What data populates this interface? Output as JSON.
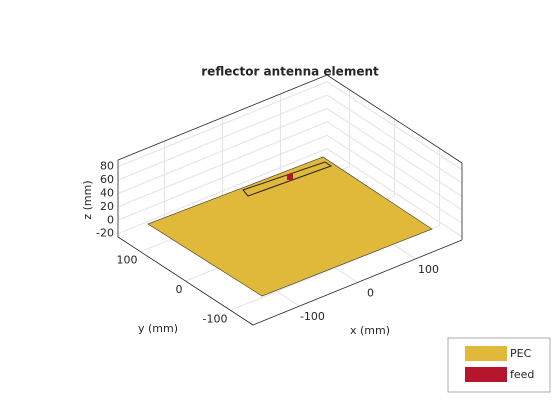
{
  "chart_data": {
    "type": "antenna3d",
    "title": "reflector antenna element",
    "xlabel": "x (mm)",
    "ylabel": "y (mm)",
    "zlabel": "z (mm)",
    "xlim": [
      -180,
      180
    ],
    "ylim": [
      -150,
      150
    ],
    "zlim": [
      -25,
      90
    ],
    "xticks": [
      -100,
      0,
      100
    ],
    "yticks": [
      -100,
      0,
      100
    ],
    "zticks": [
      -20,
      0,
      20,
      40,
      60,
      80
    ],
    "grid": true,
    "legend_position": "southeast",
    "series": [
      {
        "name": "PEC",
        "color": "#e0b83a"
      },
      {
        "name": "feed",
        "color": "#b5162e"
      }
    ]
  }
}
